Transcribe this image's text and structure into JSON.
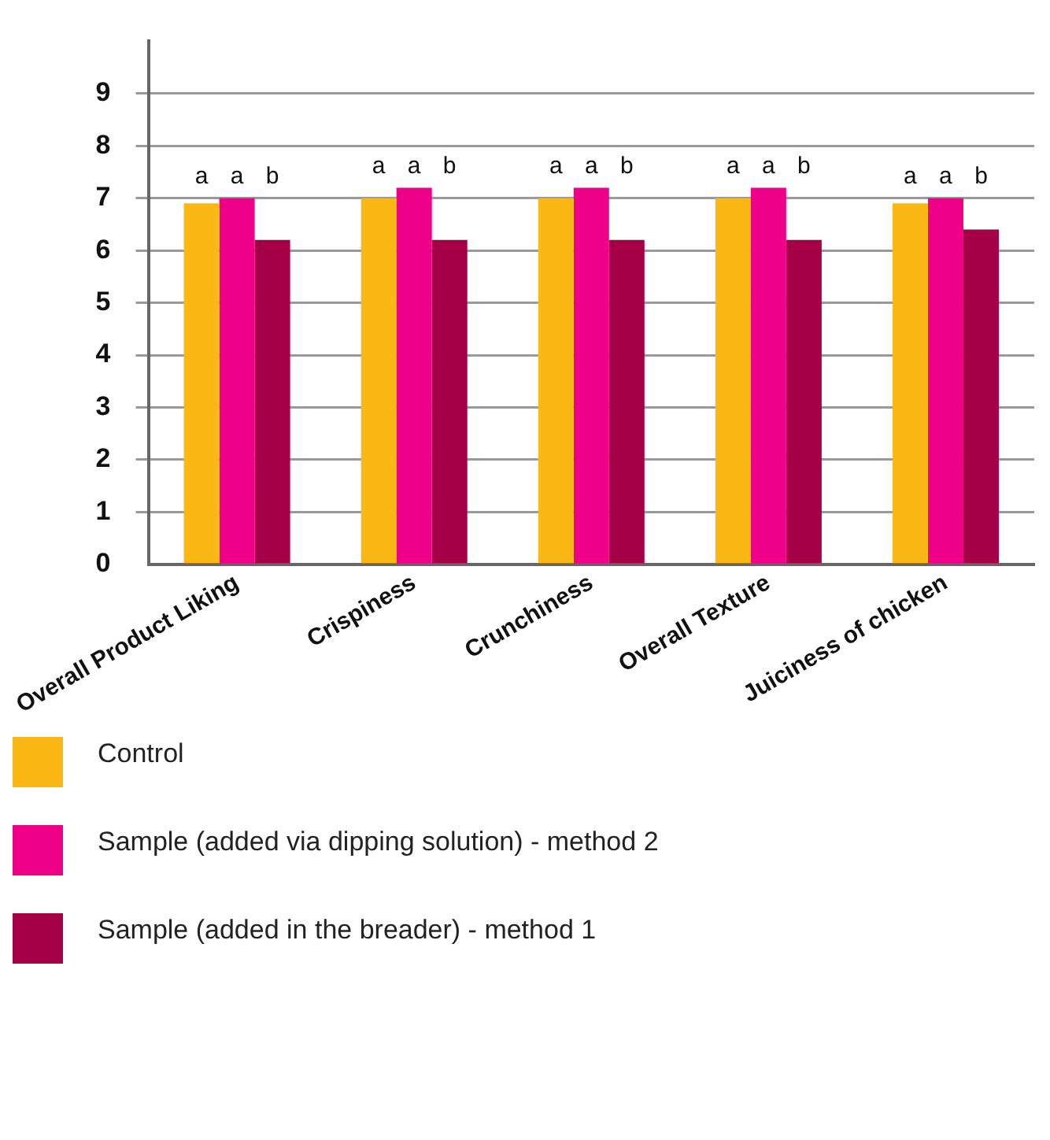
{
  "chart_data": {
    "type": "bar",
    "categories": [
      "Overall Product Liking",
      "Crispiness",
      "Crunchiness",
      "Overall Texture",
      "Juiciness of chicken"
    ],
    "series": [
      {
        "name": "Control",
        "color": "#fbb713",
        "values": [
          6.9,
          7.0,
          7.0,
          7.0,
          6.9
        ],
        "value_labels": [
          "a",
          "a",
          "a",
          "a",
          "a"
        ]
      },
      {
        "name": "Sample (added via dipping solution) - method 2",
        "color": "#ee0088",
        "values": [
          7.0,
          7.2,
          7.2,
          7.2,
          7.0
        ],
        "value_labels": [
          "a",
          "a",
          "a",
          "a",
          "a"
        ]
      },
      {
        "name": "Sample (added in the breader) - method 1",
        "color": "#a50047",
        "values": [
          6.2,
          6.2,
          6.2,
          6.2,
          6.4
        ],
        "value_labels": [
          "b",
          "b",
          "b",
          "b",
          "b"
        ]
      }
    ],
    "ylim": [
      0,
      10
    ],
    "yticks": [
      0,
      1,
      2,
      3,
      4,
      5,
      6,
      7,
      8,
      9
    ],
    "grid": "y",
    "legend": "bottom"
  }
}
